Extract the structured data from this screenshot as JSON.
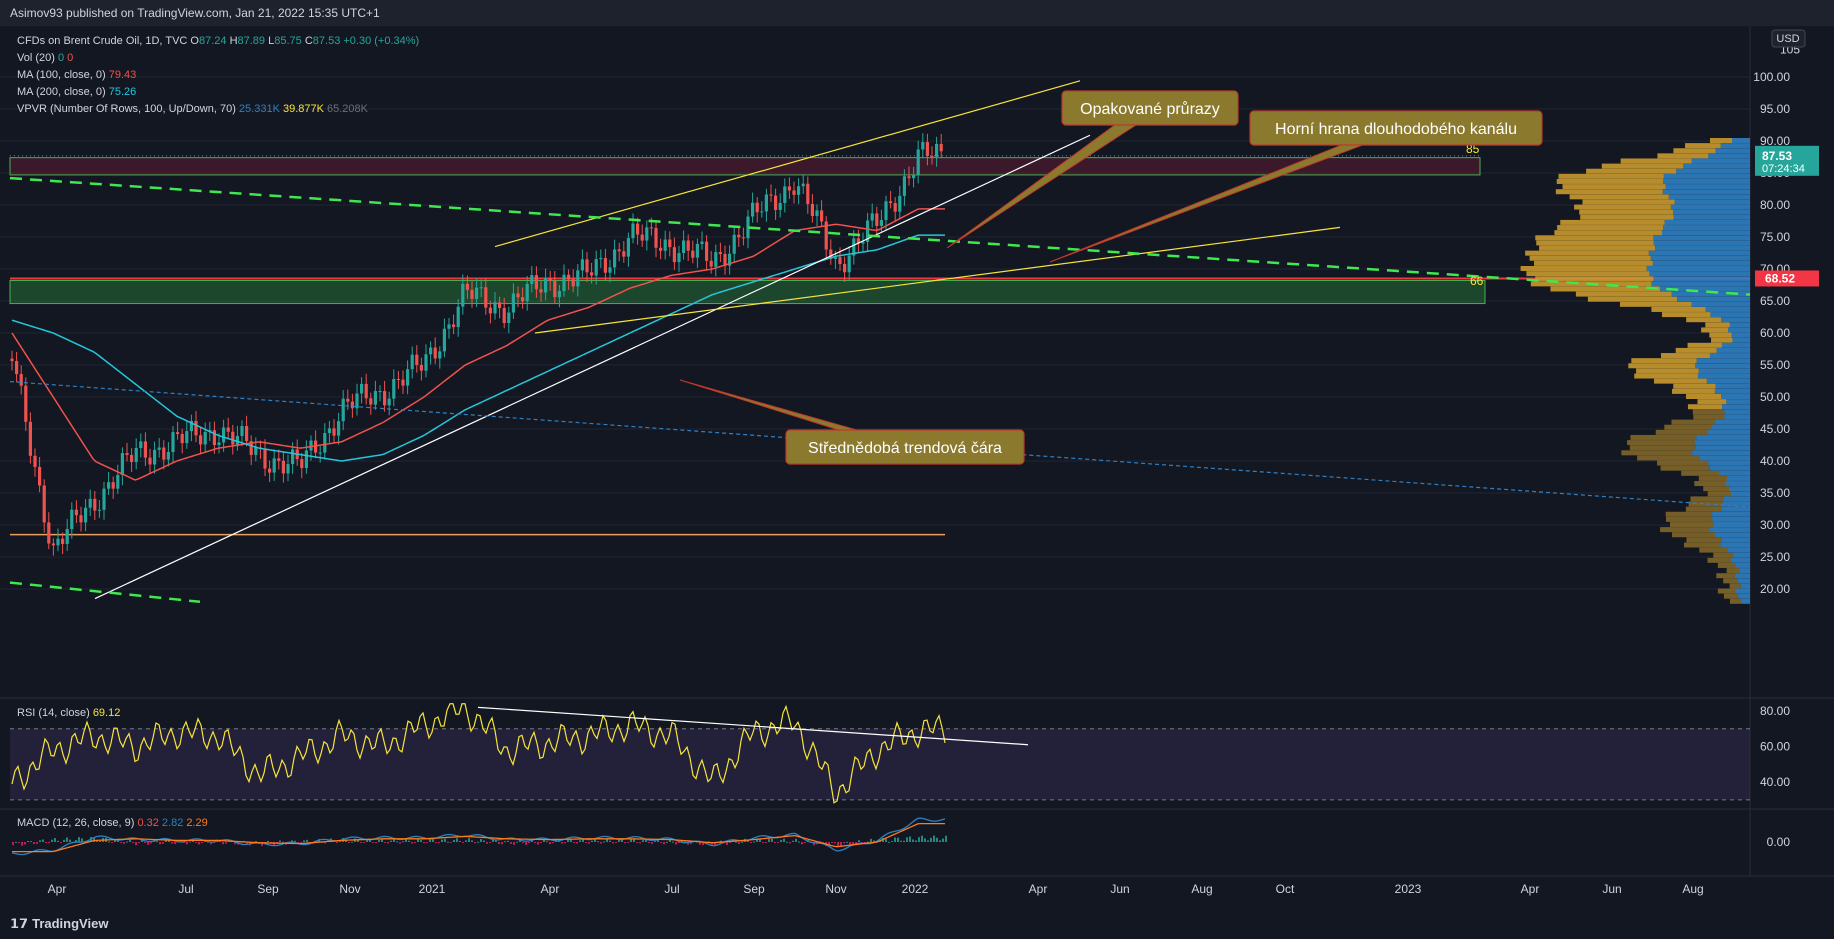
{
  "header": {
    "published": "Asimov93 published on TradingView.com, Jan 21, 2022 15:35 UTC+1"
  },
  "legend": {
    "symbol": "CFDs on Brent Crude Oil, 1D, TVC",
    "ohlc": [
      {
        "k": "O",
        "v": "87.24"
      },
      {
        "k": "H",
        "v": "87.89"
      },
      {
        "k": "L",
        "v": "85.75"
      },
      {
        "k": "C",
        "v": "87.53"
      }
    ],
    "change": "+0.30 (+0.34%)",
    "vol": {
      "label": "Vol (20)",
      "v1": "0",
      "v2": "0"
    },
    "ma100": {
      "label": "MA (100, close, 0)",
      "value": "79.43",
      "color": "#f0524d"
    },
    "ma200": {
      "label": "MA (200, close, 0)",
      "value": "75.26",
      "color": "#26c6da"
    },
    "vpvr": {
      "label": "VPVR (Number Of Rows, 100, Up/Down, 70)",
      "v1": "25.331K",
      "v2": "39.877K",
      "v3": "65.208K"
    }
  },
  "annotations": [
    {
      "text": "Opakované průrazy"
    },
    {
      "text": "Horní hrana dlouhodobého kanálu"
    },
    {
      "text": "Střednědobá trendová čára"
    }
  ],
  "level_labels": {
    "l85": "85",
    "l66": "66"
  },
  "price_axis": {
    "currency": "USD",
    "last_price": "87.53",
    "countdown": "07:24:34",
    "red_level": "68.52",
    "ticks": [
      "100.00",
      "95.00",
      "90.00",
      "85.00",
      "80.00",
      "75.00",
      "70.00",
      "65.00",
      "60.00",
      "55.00",
      "50.00",
      "45.00",
      "40.00",
      "35.00",
      "30.00",
      "25.00",
      "20.00"
    ],
    "top_tick": "105"
  },
  "rsi": {
    "label": "RSI (14, close)",
    "value": "69.12",
    "ticks": [
      "80.00",
      "60.00",
      "40.00"
    ]
  },
  "macd": {
    "label": "MACD (12, 26, close, 9)",
    "v1": "0.32",
    "v2": "2.82",
    "v3": "2.29",
    "tick": "0.00"
  },
  "time_axis": [
    "Apr",
    "Jul",
    "Sep",
    "Nov",
    "2021",
    "Apr",
    "Jul",
    "Sep",
    "Nov",
    "2022",
    "Apr",
    "Jun",
    "Aug",
    "Oct",
    "2023",
    "Apr",
    "Jun",
    "Aug"
  ],
  "footer": {
    "brand": "TradingView"
  },
  "colors": {
    "up": "#26a69a",
    "down": "#ef5350",
    "accent": "#f7e43a",
    "green_dash": "#3ee84e",
    "vp_up": "#2f80c3",
    "vp_down": "#c9992d"
  },
  "chart_data": {
    "type": "candlestick",
    "title": "CFDs on Brent Crude Oil, 1D, TVC",
    "x": [
      "2020-03",
      "2020-04",
      "2020-05",
      "2020-06",
      "2020-07",
      "2020-08",
      "2020-09",
      "2020-10",
      "2020-11",
      "2020-12",
      "2021-01",
      "2021-02",
      "2021-03",
      "2021-04",
      "2021-05",
      "2021-06",
      "2021-07",
      "2021-08",
      "2021-09",
      "2021-10",
      "2021-11",
      "2021-12",
      "2022-01"
    ],
    "close": [
      56,
      26,
      34,
      41,
      43,
      45,
      41,
      39,
      48,
      51,
      55,
      66,
      64,
      68,
      69,
      75,
      74,
      71,
      78,
      84,
      71,
      77,
      87.5
    ],
    "ma100": [
      60,
      50,
      40,
      37,
      40,
      42,
      43,
      42,
      43,
      46,
      50,
      55,
      58,
      62,
      64,
      67,
      69,
      70,
      72,
      76,
      77,
      76,
      79.4
    ],
    "ma200": [
      62,
      60,
      57,
      52,
      47,
      44,
      42,
      41,
      40,
      41,
      44,
      48,
      51,
      54,
      57,
      60,
      63,
      66,
      68,
      70,
      72,
      73,
      75.3
    ],
    "ylim": [
      18,
      105
    ],
    "horizontal_levels": [
      85,
      66,
      68.52,
      28.5
    ],
    "rsi": [
      40,
      58,
      66,
      60,
      68,
      66,
      44,
      54,
      66,
      60,
      72,
      82,
      58,
      62,
      66,
      72,
      66,
      40,
      68,
      74,
      34,
      58,
      69.1
    ],
    "macd_line": [
      -1.5,
      -1.0,
      0.6,
      0.3,
      0.2,
      0.2,
      -0.3,
      -0.2,
      0.4,
      0.5,
      0.5,
      0.9,
      0.3,
      0.3,
      0.5,
      0.5,
      0.3,
      -0.3,
      0.5,
      0.9,
      -1.0,
      0.2,
      2.8
    ],
    "signal_line": [
      -1.2,
      -1.2,
      0.2,
      0.4,
      0.2,
      0.2,
      -0.1,
      -0.2,
      0.2,
      0.4,
      0.4,
      0.7,
      0.4,
      0.3,
      0.4,
      0.4,
      0.3,
      -0.1,
      0.3,
      0.8,
      -0.6,
      0.0,
      2.3
    ]
  }
}
